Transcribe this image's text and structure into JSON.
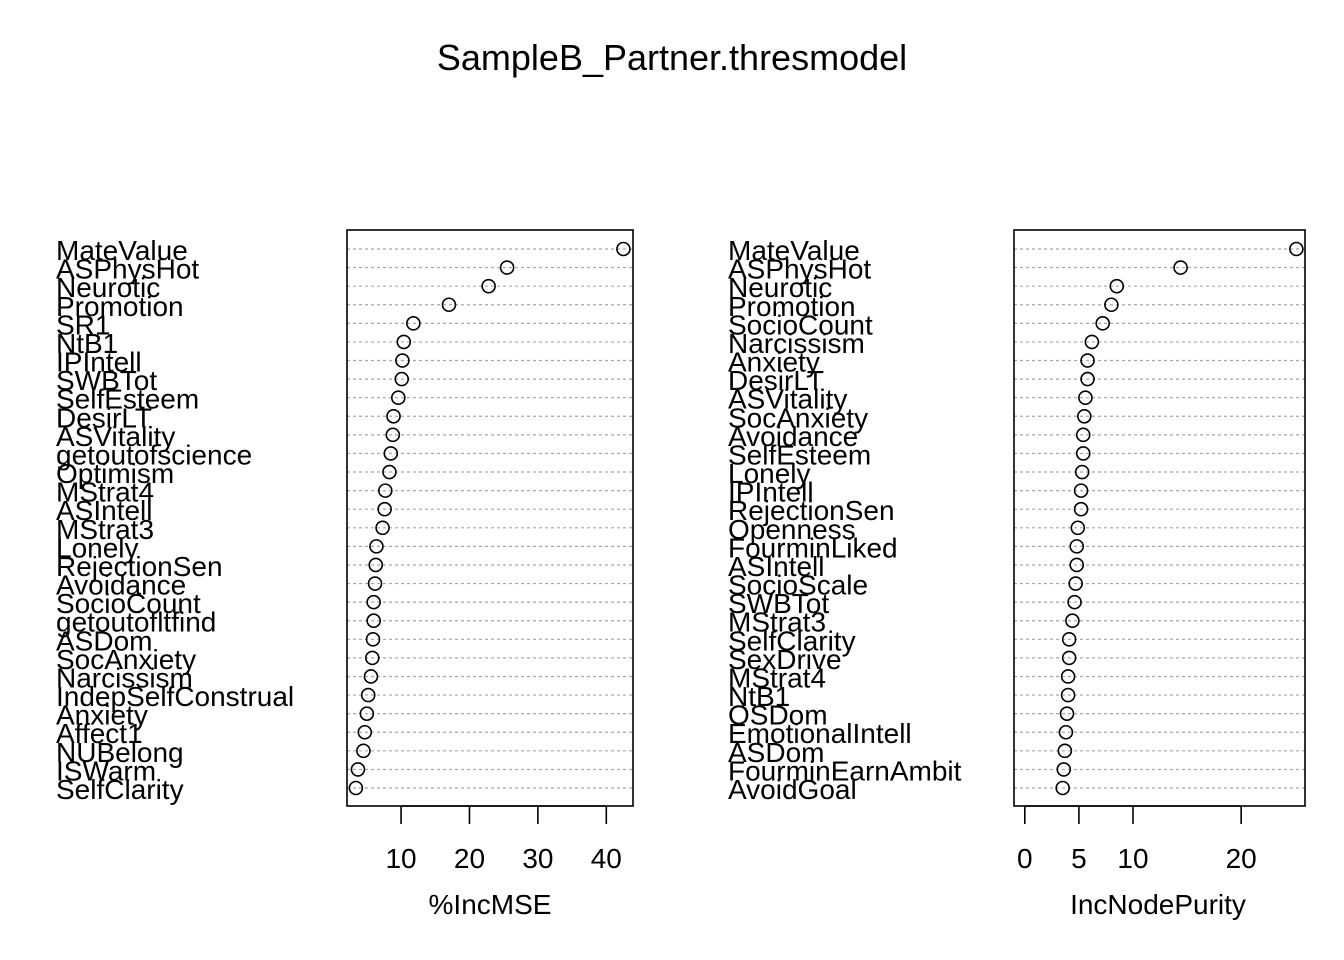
{
  "title": "SampleB_Partner.thresmodel",
  "colors": {
    "ink": "#000000",
    "grid": "#a6a6a6",
    "background": "#ffffff"
  },
  "chart_data": [
    {
      "type": "scatter",
      "variant": "dot-chart",
      "xlabel": "%IncMSE",
      "xlim": [
        2.1,
        43.9
      ],
      "xticks": [
        10,
        20,
        30,
        40
      ],
      "grid": "horizontal dotted",
      "labels": [
        "MateValue",
        "ASPhysHot",
        "Neurotic",
        "Promotion",
        "SR1",
        "NtB1",
        "IPIntell",
        "SWBTot",
        "SelfEsteem",
        "DesirLT",
        "ASVitality",
        "getoutofscience",
        "Optimism",
        "MStrat4",
        "ASIntell",
        "MStrat3",
        "Lonely",
        "RejectionSen",
        "Avoidance",
        "SocioCount",
        "getoutofltfind",
        "ASDom",
        "SocAnxiety",
        "Narcissism",
        "IndepSelfConstrual",
        "Anxiety",
        "Affect1",
        "NUBelong",
        "ISWarm",
        "SelfClarity"
      ],
      "values": [
        42.5,
        25.5,
        22.8,
        17.0,
        11.8,
        10.4,
        10.2,
        10.1,
        9.6,
        8.9,
        8.8,
        8.5,
        8.3,
        7.7,
        7.6,
        7.3,
        6.4,
        6.3,
        6.2,
        6.0,
        6.0,
        5.9,
        5.8,
        5.6,
        5.2,
        5.0,
        4.7,
        4.5,
        3.7,
        3.4
      ]
    },
    {
      "type": "scatter",
      "variant": "dot-chart",
      "xlabel": "IncNodePurity",
      "xlim": [
        -1.0,
        25.9
      ],
      "xticks": [
        0,
        5,
        10,
        20
      ],
      "grid": "horizontal dotted",
      "labels": [
        "MateValue",
        "ASPhysHot",
        "Neurotic",
        "Promotion",
        "SocioCount",
        "Narcissism",
        "Anxiety",
        "DesirLT",
        "ASVitality",
        "SocAnxiety",
        "Avoidance",
        "SelfEsteem",
        "Lonely",
        "IPIntell",
        "RejectionSen",
        "Openness",
        "FourminLiked",
        "ASIntell",
        "SocioScale",
        "SWBTot",
        "MStrat3",
        "SelfClarity",
        "SexDrive",
        "MStrat4",
        "NtB1",
        "OSDom",
        "EmotionalIntell",
        "ASDom",
        "FourminEarnAmbit",
        "AvoidGoal"
      ],
      "values": [
        25.1,
        14.4,
        8.5,
        8.0,
        7.2,
        6.2,
        5.8,
        5.8,
        5.6,
        5.5,
        5.4,
        5.4,
        5.3,
        5.2,
        5.2,
        4.9,
        4.8,
        4.8,
        4.7,
        4.6,
        4.4,
        4.1,
        4.1,
        4.0,
        4.0,
        3.9,
        3.8,
        3.7,
        3.6,
        3.5
      ]
    }
  ]
}
